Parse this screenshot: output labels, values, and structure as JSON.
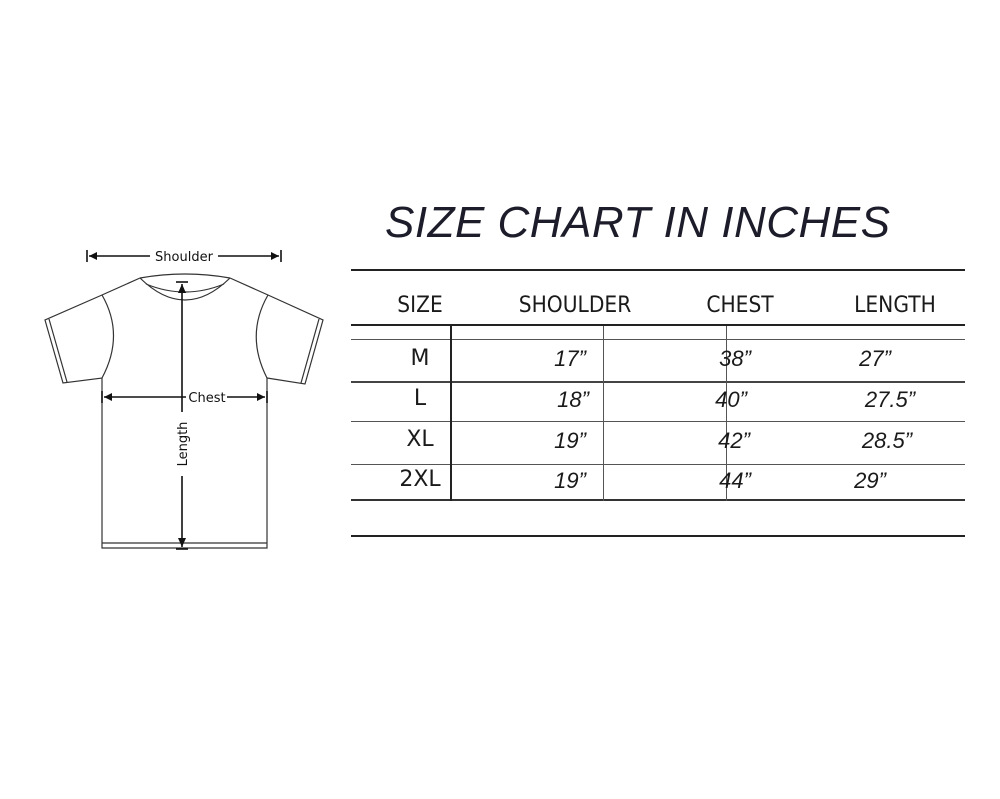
{
  "title": "SIZE CHART IN INCHES",
  "diagram": {
    "shoulder_label": "Shoulder",
    "chest_label": "Chest",
    "length_label": "Length"
  },
  "table": {
    "headers": [
      "SIZE",
      "SHOULDER",
      "CHEST",
      "LENGTH"
    ],
    "rows": [
      [
        "M",
        "17”",
        "38”",
        "27”"
      ],
      [
        "L",
        "18”",
        "40”",
        "27.5”"
      ],
      [
        "XL",
        "19”",
        "42”",
        "28.5”"
      ],
      [
        "2XL",
        "19”",
        "44”",
        "29”"
      ]
    ]
  }
}
